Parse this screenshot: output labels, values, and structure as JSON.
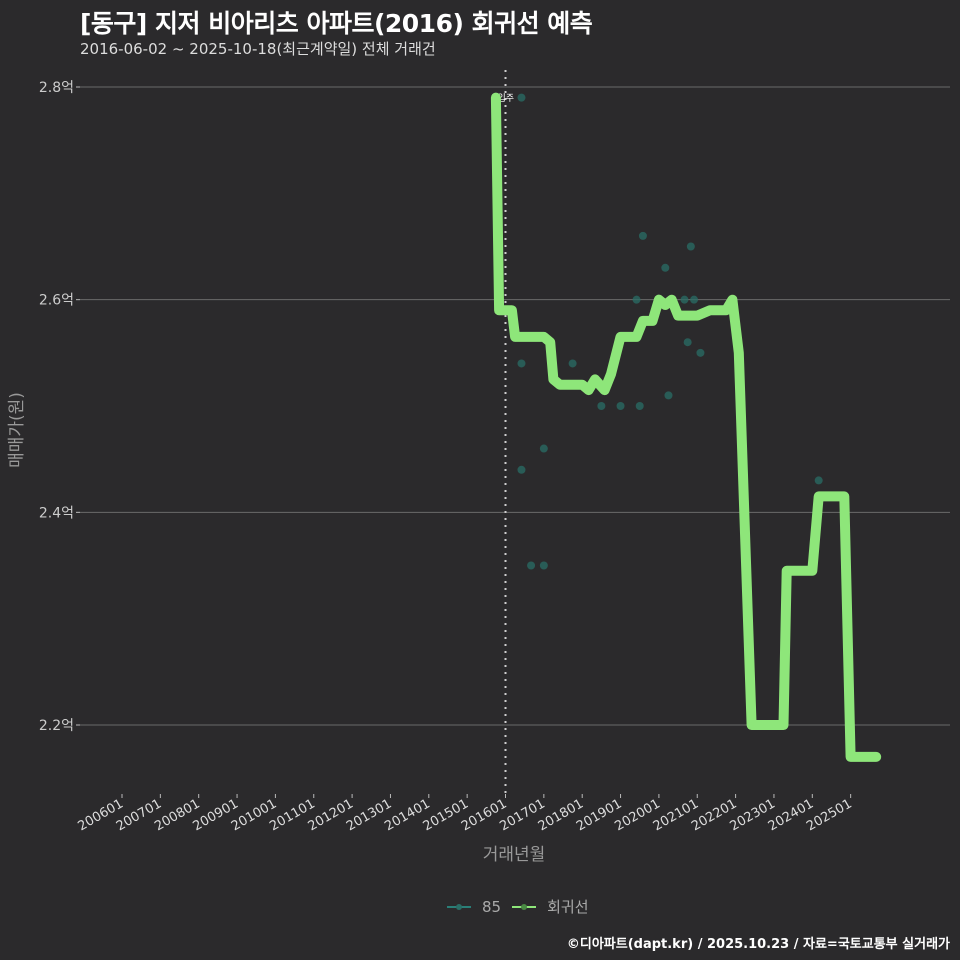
{
  "header": {
    "title": "[동구] 지저 비아리츠 아파트(2016) 회귀선 예측",
    "subtitle": "2016-06-02 ~ 2025-10-18(최근계약일) 전체 거래건"
  },
  "chart_data": {
    "type": "scatter",
    "title": "[동구] 지저 비아리츠 아파트(2016) 회귀선 예측",
    "subtitle": "2016-06-02 ~ 2025-10-18(최근계약일) 전체 거래건",
    "xlabel": "거래년월",
    "ylabel": "매매가(원)",
    "x_ticks": [
      "200601",
      "200701",
      "200801",
      "200901",
      "201001",
      "201101",
      "201201",
      "201301",
      "201401",
      "201501",
      "201601",
      "201701",
      "201801",
      "201901",
      "202001",
      "202101",
      "202201",
      "202301",
      "202401",
      "202501"
    ],
    "y_ticks": [
      "2.2억",
      "2.4억",
      "2.6억",
      "2.8억"
    ],
    "y_tick_values": [
      22000,
      24000,
      26000,
      28000
    ],
    "ylim": [
      21450,
      28700
    ],
    "grid": true,
    "legend_position": "bottom",
    "annotation": {
      "text": "입주",
      "x": "2016-01",
      "type": "vertical-dotted-line"
    },
    "series": [
      {
        "name": "85",
        "type": "scatter",
        "color": "#2a6e66",
        "points": [
          {
            "x": "2016-06",
            "y": 27900
          },
          {
            "x": "2016-06",
            "y": 25400
          },
          {
            "x": "2016-06",
            "y": 24400
          },
          {
            "x": "2016-09",
            "y": 23500
          },
          {
            "x": "2017-01",
            "y": 23500
          },
          {
            "x": "2017-01",
            "y": 24600
          },
          {
            "x": "2017-10",
            "y": 25400
          },
          {
            "x": "2018-07",
            "y": 25000
          },
          {
            "x": "2019-01",
            "y": 25000
          },
          {
            "x": "2019-07",
            "y": 25000
          },
          {
            "x": "2019-06",
            "y": 26000
          },
          {
            "x": "2019-08",
            "y": 26600
          },
          {
            "x": "2020-03",
            "y": 26300
          },
          {
            "x": "2020-04",
            "y": 25100
          },
          {
            "x": "2020-09",
            "y": 26000
          },
          {
            "x": "2020-10",
            "y": 25600
          },
          {
            "x": "2020-11",
            "y": 26500
          },
          {
            "x": "2020-12",
            "y": 26000
          },
          {
            "x": "2021-02",
            "y": 25500
          },
          {
            "x": "2024-03",
            "y": 24300
          }
        ]
      },
      {
        "name": "회귀선",
        "type": "line",
        "color": "#8ee67a",
        "points": [
          {
            "x": "2015-10",
            "y": 27900
          },
          {
            "x": "2015-11",
            "y": 25900
          },
          {
            "x": "2016-03",
            "y": 25900
          },
          {
            "x": "2016-04",
            "y": 25650
          },
          {
            "x": "2017-01",
            "y": 25650
          },
          {
            "x": "2017-03",
            "y": 25600
          },
          {
            "x": "2017-04",
            "y": 25250
          },
          {
            "x": "2017-06",
            "y": 25200
          },
          {
            "x": "2018-01",
            "y": 25200
          },
          {
            "x": "2018-03",
            "y": 25150
          },
          {
            "x": "2018-05",
            "y": 25250
          },
          {
            "x": "2018-08",
            "y": 25150
          },
          {
            "x": "2018-10",
            "y": 25300
          },
          {
            "x": "2019-01",
            "y": 25650
          },
          {
            "x": "2019-06",
            "y": 25650
          },
          {
            "x": "2019-08",
            "y": 25800
          },
          {
            "x": "2019-11",
            "y": 25800
          },
          {
            "x": "2020-01",
            "y": 26000
          },
          {
            "x": "2020-03",
            "y": 25950
          },
          {
            "x": "2020-05",
            "y": 26000
          },
          {
            "x": "2020-07",
            "y": 25850
          },
          {
            "x": "2021-01",
            "y": 25850
          },
          {
            "x": "2021-05",
            "y": 25900
          },
          {
            "x": "2021-10",
            "y": 25900
          },
          {
            "x": "2021-12",
            "y": 26000
          },
          {
            "x": "2022-02",
            "y": 25500
          },
          {
            "x": "2022-06",
            "y": 22000
          },
          {
            "x": "2023-04",
            "y": 22000
          },
          {
            "x": "2023-05",
            "y": 23450
          },
          {
            "x": "2024-01",
            "y": 23450
          },
          {
            "x": "2024-03",
            "y": 24150
          },
          {
            "x": "2024-11",
            "y": 24150
          },
          {
            "x": "2025-01",
            "y": 21700
          },
          {
            "x": "2025-09",
            "y": 21700
          }
        ]
      }
    ]
  },
  "legend": {
    "items": [
      {
        "label": "85",
        "color": "#2a7f78"
      },
      {
        "label": "회귀선",
        "color": "#8ee67a"
      }
    ]
  },
  "footer": {
    "credit": "©디아파트(dapt.kr) / 2025.10.23 / 자료=국토교통부 실거래가"
  }
}
